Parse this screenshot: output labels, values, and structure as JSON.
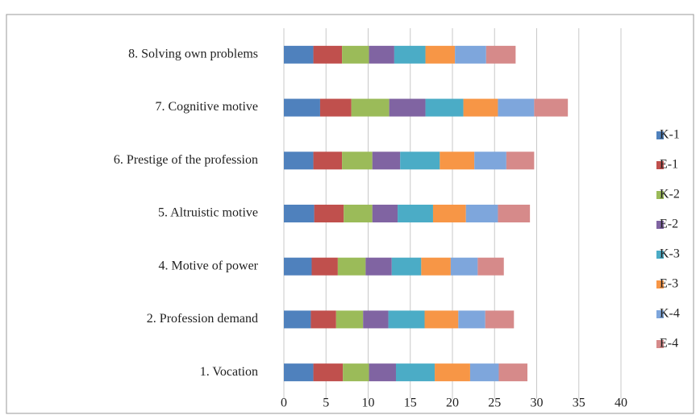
{
  "chart_data": {
    "type": "stacked-bar-horizontal",
    "categories": [
      "1. Vocation",
      "2. Profession demand",
      "4. Motive of power",
      "5. Altruistic motive",
      "6. Prestige of the profession",
      "7. Cognitive motive",
      "8. Solving own problems"
    ],
    "series": [
      {
        "name": "K-1",
        "color": "#4f81bd",
        "values": [
          3.5,
          3.2,
          3.3,
          3.6,
          3.5,
          4.3,
          3.5
        ]
      },
      {
        "name": "E-1",
        "color": "#c0504d",
        "values": [
          3.5,
          3.0,
          3.1,
          3.5,
          3.4,
          3.7,
          3.4
        ]
      },
      {
        "name": "K-2",
        "color": "#9bbb59",
        "values": [
          3.1,
          3.2,
          3.3,
          3.4,
          3.6,
          4.5,
          3.2
        ]
      },
      {
        "name": "E-2",
        "color": "#8064a2",
        "values": [
          3.2,
          3.0,
          3.1,
          3.0,
          3.3,
          4.3,
          3.0
        ]
      },
      {
        "name": "K-3",
        "color": "#4bacc6",
        "values": [
          4.6,
          4.3,
          3.5,
          4.2,
          4.7,
          4.5,
          3.7
        ]
      },
      {
        "name": "E-3",
        "color": "#f79646",
        "values": [
          4.2,
          4.0,
          3.5,
          3.9,
          4.1,
          4.1,
          3.5
        ]
      },
      {
        "name": "K-4",
        "color": "#7ea6dc",
        "values": [
          3.4,
          3.2,
          3.2,
          3.8,
          3.8,
          4.3,
          3.7
        ]
      },
      {
        "name": "E-4",
        "color": "#d68a8a",
        "values": [
          3.4,
          3.4,
          3.1,
          3.8,
          3.3,
          4.0,
          3.5
        ]
      }
    ],
    "xlim": [
      0,
      40
    ],
    "xticks": [
      0,
      5,
      10,
      15,
      20,
      25,
      30,
      35,
      40
    ],
    "grid": true,
    "legend": "right"
  }
}
